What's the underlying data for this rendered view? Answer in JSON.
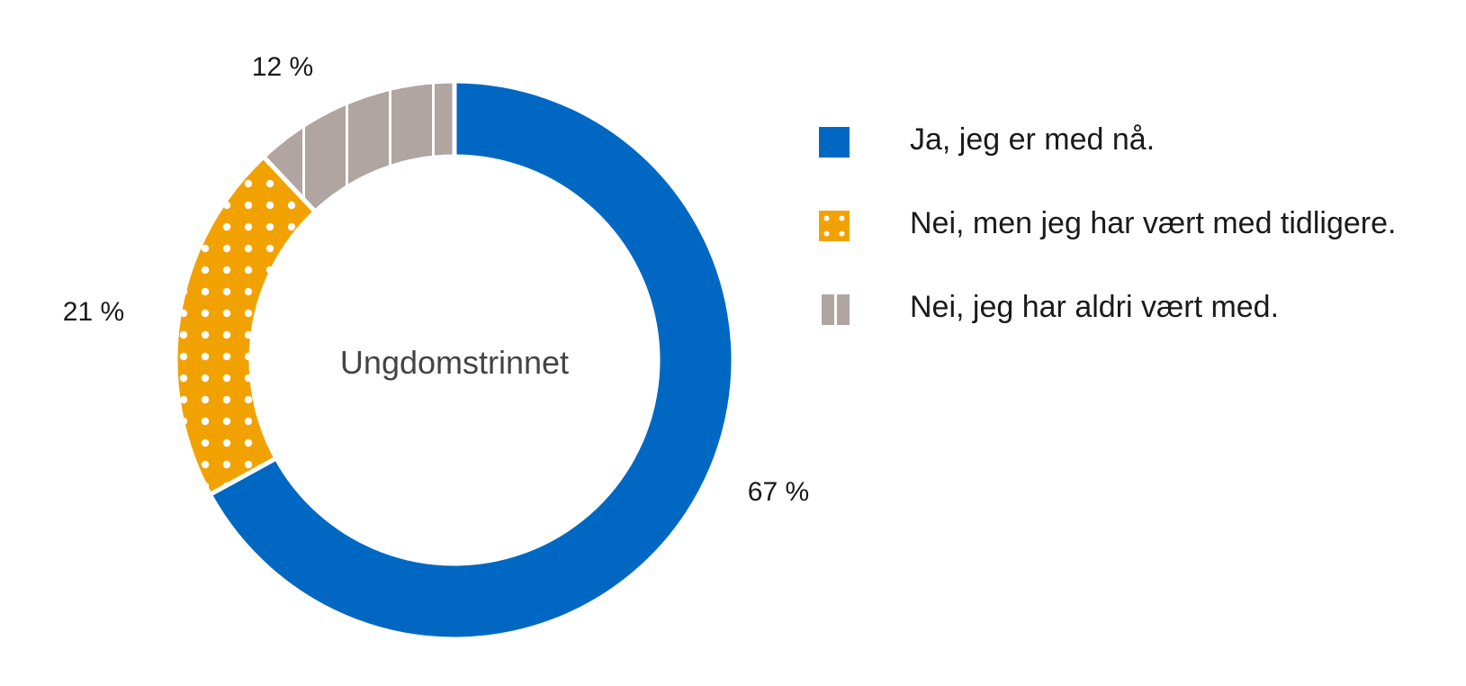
{
  "chart_data": {
    "type": "pie",
    "center_label": "Ungdomstrinnet",
    "slices": [
      {
        "label": "Ja, jeg er med nå.",
        "value": 67,
        "value_label": "67 %",
        "color": "#0068c3",
        "pattern": "solid"
      },
      {
        "label": "Nei, men jeg har vært med tidligere.",
        "value": 21,
        "value_label": "21 %",
        "color": "#f2a200",
        "pattern": "dots"
      },
      {
        "label": "Nei, jeg har aldri vært med.",
        "value": 12,
        "value_label": "12 %",
        "color": "#b0a5a1",
        "pattern": "stripes"
      }
    ],
    "legend_position": "right"
  }
}
